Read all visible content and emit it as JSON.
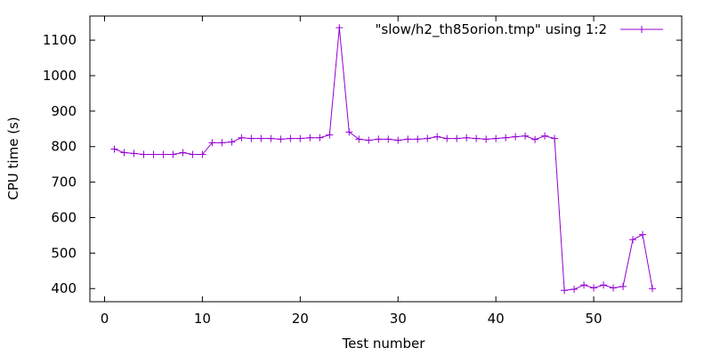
{
  "colors": {
    "series": "#9400d3",
    "axis": "#000000",
    "background": "#ffffff"
  },
  "chart_data": {
    "type": "line",
    "xlabel": "Test number",
    "ylabel": "CPU time (s)",
    "xlim": [
      -1.5,
      59
    ],
    "ylim": [
      363,
      1168
    ],
    "xticks": [
      0,
      10,
      20,
      30,
      40,
      50
    ],
    "yticks": [
      400,
      500,
      600,
      700,
      800,
      900,
      1000,
      1100
    ],
    "grid": false,
    "legend_position": "top-right",
    "series": [
      {
        "name": "\"slow/h2_th85orion.tmp\" using 1:2",
        "marker": "plus",
        "x": [
          1,
          2,
          3,
          4,
          5,
          6,
          7,
          8,
          9,
          10,
          11,
          12,
          13,
          14,
          15,
          16,
          17,
          18,
          19,
          20,
          21,
          22,
          23,
          24,
          25,
          26,
          27,
          28,
          29,
          30,
          31,
          32,
          33,
          34,
          35,
          36,
          37,
          38,
          39,
          40,
          41,
          42,
          43,
          44,
          45,
          46,
          47,
          48,
          49,
          50,
          51,
          52,
          53,
          54,
          55,
          56
        ],
        "y": [
          793,
          783,
          781,
          778,
          778,
          778,
          778,
          783,
          778,
          778,
          811,
          811,
          813,
          825,
          823,
          823,
          823,
          821,
          823,
          823,
          825,
          825,
          833,
          1135,
          841,
          821,
          818,
          821,
          821,
          818,
          821,
          821,
          823,
          828,
          823,
          823,
          825,
          823,
          821,
          823,
          825,
          828,
          830,
          820,
          830,
          823,
          395,
          398,
          410,
          402,
          410,
          402,
          406,
          538,
          552,
          400
        ]
      }
    ]
  }
}
